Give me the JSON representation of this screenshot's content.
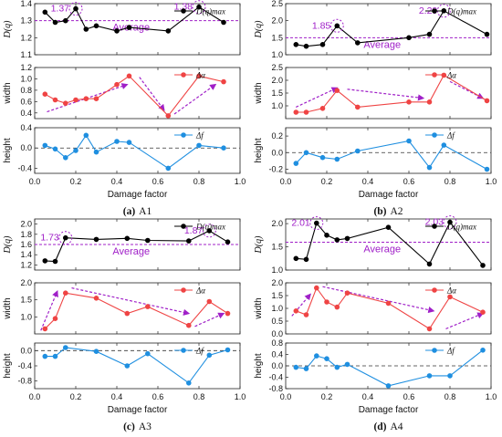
{
  "chart_data": [
    {
      "id": "a1",
      "type": "line",
      "caption_letter": "(a)",
      "caption_name": "A1",
      "x_axis": {
        "range": [
          0,
          1.0
        ],
        "ticks": [
          0.0,
          0.2,
          0.4,
          0.6,
          0.8,
          1.0
        ],
        "tick_labels": [
          "0.0",
          "0.2",
          "0.4",
          "0.6",
          "0.8",
          "1.0"
        ],
        "label": "Damage factor"
      },
      "panels": [
        {
          "key": "Dq",
          "ylabel": "D(q)",
          "ylim": [
            1.1,
            1.4
          ],
          "yticks": [
            1.1,
            1.2,
            1.3,
            1.4
          ],
          "ytick_labels": [
            "1.1",
            "1.2",
            "1.3",
            "1.4"
          ],
          "legend": "D(q)max",
          "color": "#000000",
          "x": [
            0.05,
            0.1,
            0.15,
            0.2,
            0.25,
            0.3,
            0.4,
            0.46,
            0.65,
            0.8,
            0.92
          ],
          "y": [
            1.35,
            1.29,
            1.3,
            1.37,
            1.25,
            1.27,
            1.24,
            1.26,
            1.24,
            1.38,
            1.29
          ],
          "reference_line": {
            "y": 1.3,
            "label": "Average"
          },
          "annotations": [
            {
              "text": "1.37",
              "x": 0.2,
              "y": 1.37
            },
            {
              "text": "1.38",
              "x": 0.8,
              "y": 1.38
            }
          ]
        },
        {
          "key": "width",
          "ylabel": "width",
          "ylim": [
            0.3,
            1.2
          ],
          "yticks": [
            0.4,
            0.6,
            0.8,
            1.0,
            1.2
          ],
          "ytick_labels": [
            "0.4",
            "0.6",
            "0.8",
            "1.0",
            "1.2"
          ],
          "legend": "Δα",
          "color": "#ef4444",
          "x": [
            0.05,
            0.1,
            0.15,
            0.2,
            0.25,
            0.3,
            0.4,
            0.46,
            0.65,
            0.8,
            0.92
          ],
          "y": [
            0.73,
            0.63,
            0.57,
            0.63,
            0.65,
            0.65,
            0.9,
            1.05,
            0.35,
            1.05,
            0.95
          ],
          "trend_arrows": [
            {
              "from": [
                0.06,
                0.42
              ],
              "to": [
                0.45,
                0.9
              ]
            },
            {
              "from": [
                0.51,
                1.03
              ],
              "to": [
                0.63,
                0.45
              ]
            },
            {
              "from": [
                0.68,
                0.38
              ],
              "to": [
                0.88,
                0.9
              ]
            }
          ]
        },
        {
          "key": "height",
          "ylabel": "height",
          "ylim": [
            -0.5,
            0.4
          ],
          "yticks": [
            -0.4,
            0.0,
            0.4
          ],
          "ytick_labels": [
            "-0.4",
            "0.0",
            "0.4"
          ],
          "legend": "Δf",
          "color": "#1f8fe0",
          "x": [
            0.05,
            0.1,
            0.15,
            0.2,
            0.25,
            0.3,
            0.4,
            0.46,
            0.65,
            0.8,
            0.92
          ],
          "y": [
            0.05,
            -0.02,
            -0.19,
            -0.05,
            0.25,
            -0.08,
            0.13,
            0.11,
            -0.4,
            0.05,
            0.0
          ],
          "reference_line": {
            "y": 0.0
          }
        }
      ]
    },
    {
      "id": "a2",
      "type": "line",
      "caption_letter": "(b)",
      "caption_name": "A2",
      "x_axis": {
        "range": [
          0,
          1.0
        ],
        "ticks": [
          0.0,
          0.2,
          0.4,
          0.6,
          0.8,
          1.0
        ],
        "tick_labels": [
          "0.0",
          "0.2",
          "0.4",
          "0.6",
          "0.8",
          "1.0"
        ],
        "label": "Damage factor"
      },
      "panels": [
        {
          "key": "Dq",
          "ylabel": "D(q)",
          "ylim": [
            1.0,
            2.5
          ],
          "yticks": [
            1.0,
            1.5,
            2.0,
            2.5
          ],
          "ytick_labels": [
            "1.0",
            "1.5",
            "2.0",
            "2.5"
          ],
          "legend": "D(q)max",
          "color": "#000000",
          "x": [
            0.05,
            0.1,
            0.18,
            0.25,
            0.35,
            0.6,
            0.7,
            0.77,
            0.98
          ],
          "y": [
            1.3,
            1.25,
            1.3,
            1.85,
            1.35,
            1.5,
            1.6,
            2.29,
            1.6
          ],
          "reference_line": {
            "y": 1.5,
            "label": "Average"
          },
          "annotations": [
            {
              "text": "1.85",
              "x": 0.25,
              "y": 1.85
            },
            {
              "text": "2.29",
              "x": 0.77,
              "y": 2.29
            }
          ]
        },
        {
          "key": "width",
          "ylabel": "width",
          "ylim": [
            0.5,
            2.5
          ],
          "yticks": [
            1.0,
            1.5,
            2.0,
            2.5
          ],
          "ytick_labels": [
            "1.0",
            "1.5",
            "2.0",
            "2.5"
          ],
          "legend": "Δα",
          "color": "#ef4444",
          "x": [
            0.05,
            0.1,
            0.18,
            0.25,
            0.35,
            0.6,
            0.7,
            0.77,
            0.98
          ],
          "y": [
            0.75,
            0.75,
            0.9,
            1.6,
            0.95,
            1.15,
            1.15,
            2.2,
            1.2
          ],
          "trend_arrows": [
            {
              "from": [
                0.05,
                0.95
              ],
              "to": [
                0.25,
                1.7
              ]
            },
            {
              "from": [
                0.3,
                1.65
              ],
              "to": [
                0.67,
                1.3
              ]
            },
            {
              "from": [
                0.8,
                1.95
              ],
              "to": [
                0.96,
                1.3
              ]
            }
          ]
        },
        {
          "key": "height",
          "ylabel": "height",
          "ylim": [
            -0.25,
            0.3
          ],
          "yticks": [
            -0.2,
            0.0,
            0.2
          ],
          "ytick_labels": [
            "-0.2",
            "0.0",
            "0.2"
          ],
          "legend": "Δf",
          "color": "#1f8fe0",
          "x": [
            0.05,
            0.1,
            0.18,
            0.25,
            0.35,
            0.6,
            0.7,
            0.77,
            0.98
          ],
          "y": [
            -0.13,
            0.0,
            -0.06,
            -0.08,
            0.02,
            0.14,
            -0.18,
            0.09,
            -0.2
          ],
          "reference_line": {
            "y": 0.0
          }
        }
      ]
    },
    {
      "id": "a3",
      "type": "line",
      "caption_letter": "(c)",
      "caption_name": "A3",
      "x_axis": {
        "range": [
          0,
          1.0
        ],
        "ticks": [
          0.0,
          0.2,
          0.4,
          0.6,
          0.8,
          1.0
        ],
        "tick_labels": [
          "0.0",
          "0.2",
          "0.4",
          "0.6",
          "0.8",
          "1.0"
        ],
        "label": "Damage factor"
      },
      "panels": [
        {
          "key": "Dq",
          "ylabel": "D(q)",
          "ylim": [
            1.1,
            2.1
          ],
          "yticks": [
            1.2,
            1.4,
            1.6,
            1.8,
            2.0
          ],
          "ytick_labels": [
            "1.2",
            "1.4",
            "1.6",
            "1.8",
            "2.0"
          ],
          "legend": "D(q)max",
          "color": "#000000",
          "x": [
            0.05,
            0.1,
            0.15,
            0.3,
            0.45,
            0.55,
            0.75,
            0.85,
            0.94
          ],
          "y": [
            1.28,
            1.27,
            1.73,
            1.7,
            1.72,
            1.68,
            1.67,
            1.87,
            1.65
          ],
          "reference_line": {
            "y": 1.6,
            "label": "Average"
          },
          "annotations": [
            {
              "text": "1.73",
              "x": 0.15,
              "y": 1.73
            },
            {
              "text": "1.87",
              "x": 0.85,
              "y": 1.87
            }
          ]
        },
        {
          "key": "width",
          "ylabel": "width",
          "ylim": [
            0.5,
            2.0
          ],
          "yticks": [
            1.0,
            1.5,
            2.0
          ],
          "ytick_labels": [
            "1.0",
            "1.5",
            "2.0"
          ],
          "legend": "Δα",
          "color": "#ef4444",
          "x": [
            0.05,
            0.1,
            0.15,
            0.3,
            0.45,
            0.55,
            0.75,
            0.85,
            0.94
          ],
          "y": [
            0.65,
            0.95,
            1.7,
            1.55,
            1.1,
            1.3,
            0.75,
            1.45,
            1.1
          ],
          "trend_arrows": [
            {
              "from": [
                0.03,
                0.6
              ],
              "to": [
                0.11,
                1.75
              ]
            },
            {
              "from": [
                0.18,
                1.85
              ],
              "to": [
                0.75,
                1.1
              ]
            },
            {
              "from": [
                0.78,
                0.72
              ],
              "to": [
                0.92,
                1.1
              ]
            }
          ]
        },
        {
          "key": "height",
          "ylabel": "height",
          "ylim": [
            -1.0,
            0.2
          ],
          "yticks": [
            -0.8,
            -0.4,
            0.0
          ],
          "ytick_labels": [
            "-0.8",
            "-0.4",
            "0.0"
          ],
          "legend": "Δf",
          "color": "#1f8fe0",
          "x": [
            0.05,
            0.1,
            0.15,
            0.3,
            0.45,
            0.55,
            0.75,
            0.85,
            0.94
          ],
          "y": [
            -0.15,
            -0.15,
            0.08,
            -0.02,
            -0.4,
            -0.08,
            -0.85,
            -0.12,
            0.02
          ],
          "reference_line": {
            "y": 0.0
          }
        }
      ]
    },
    {
      "id": "a4",
      "type": "line",
      "caption_letter": "(d)",
      "caption_name": "A4",
      "x_axis": {
        "range": [
          0,
          1.0
        ],
        "ticks": [
          0.0,
          0.2,
          0.4,
          0.6,
          0.8,
          1.0
        ],
        "tick_labels": [
          "0.0",
          "0.2",
          "0.4",
          "0.6",
          "0.8",
          "1.0"
        ],
        "label": "Damage factor"
      },
      "panels": [
        {
          "key": "Dq",
          "ylabel": "D(q)",
          "ylim": [
            1.0,
            2.1
          ],
          "yticks": [
            1.0,
            1.5,
            2.0
          ],
          "ytick_labels": [
            "1.0",
            "1.5",
            "2.0"
          ],
          "legend": "D(q)max",
          "color": "#000000",
          "x": [
            0.05,
            0.1,
            0.15,
            0.2,
            0.25,
            0.3,
            0.5,
            0.7,
            0.8,
            0.96
          ],
          "y": [
            1.25,
            1.23,
            2.01,
            1.75,
            1.65,
            1.68,
            1.92,
            1.13,
            2.03,
            1.1
          ],
          "reference_line": {
            "y": 1.6,
            "label": "Average"
          },
          "annotations": [
            {
              "text": "2.01",
              "x": 0.15,
              "y": 2.01
            },
            {
              "text": "2.03",
              "x": 0.8,
              "y": 2.03
            }
          ]
        },
        {
          "key": "width",
          "ylabel": "width",
          "ylim": [
            0.0,
            2.0
          ],
          "yticks": [
            0.0,
            0.5,
            1.0,
            1.5,
            2.0
          ],
          "ytick_labels": [
            "0.0",
            "0.5",
            "1.0",
            "1.5",
            "2.0"
          ],
          "legend": "Δα",
          "color": "#ef4444",
          "x": [
            0.05,
            0.1,
            0.15,
            0.2,
            0.25,
            0.3,
            0.5,
            0.7,
            0.8,
            0.96
          ],
          "y": [
            0.9,
            0.75,
            1.8,
            1.25,
            1.05,
            1.6,
            1.2,
            0.2,
            1.45,
            0.85
          ],
          "trend_arrows": [
            {
              "from": [
                0.03,
                0.7
              ],
              "to": [
                0.12,
                1.55
              ]
            },
            {
              "from": [
                0.18,
                1.85
              ],
              "to": [
                0.72,
                0.9
              ]
            },
            {
              "from": [
                0.78,
                0.2
              ],
              "to": [
                0.96,
                0.8
              ]
            }
          ]
        },
        {
          "key": "height",
          "ylabel": "height",
          "ylim": [
            -0.8,
            0.8
          ],
          "yticks": [
            -0.8,
            -0.4,
            0.0,
            0.4,
            0.8
          ],
          "ytick_labels": [
            "-0.8",
            "-0.4",
            "0.0",
            "0.4",
            "0.8"
          ],
          "legend": "Δf",
          "color": "#1f8fe0",
          "x": [
            0.05,
            0.1,
            0.15,
            0.2,
            0.25,
            0.3,
            0.5,
            0.7,
            0.8,
            0.96
          ],
          "y": [
            -0.05,
            -0.1,
            0.35,
            0.25,
            -0.05,
            0.05,
            -0.7,
            -0.35,
            -0.35,
            0.55
          ],
          "reference_line": {
            "y": 0.0
          }
        }
      ]
    }
  ]
}
